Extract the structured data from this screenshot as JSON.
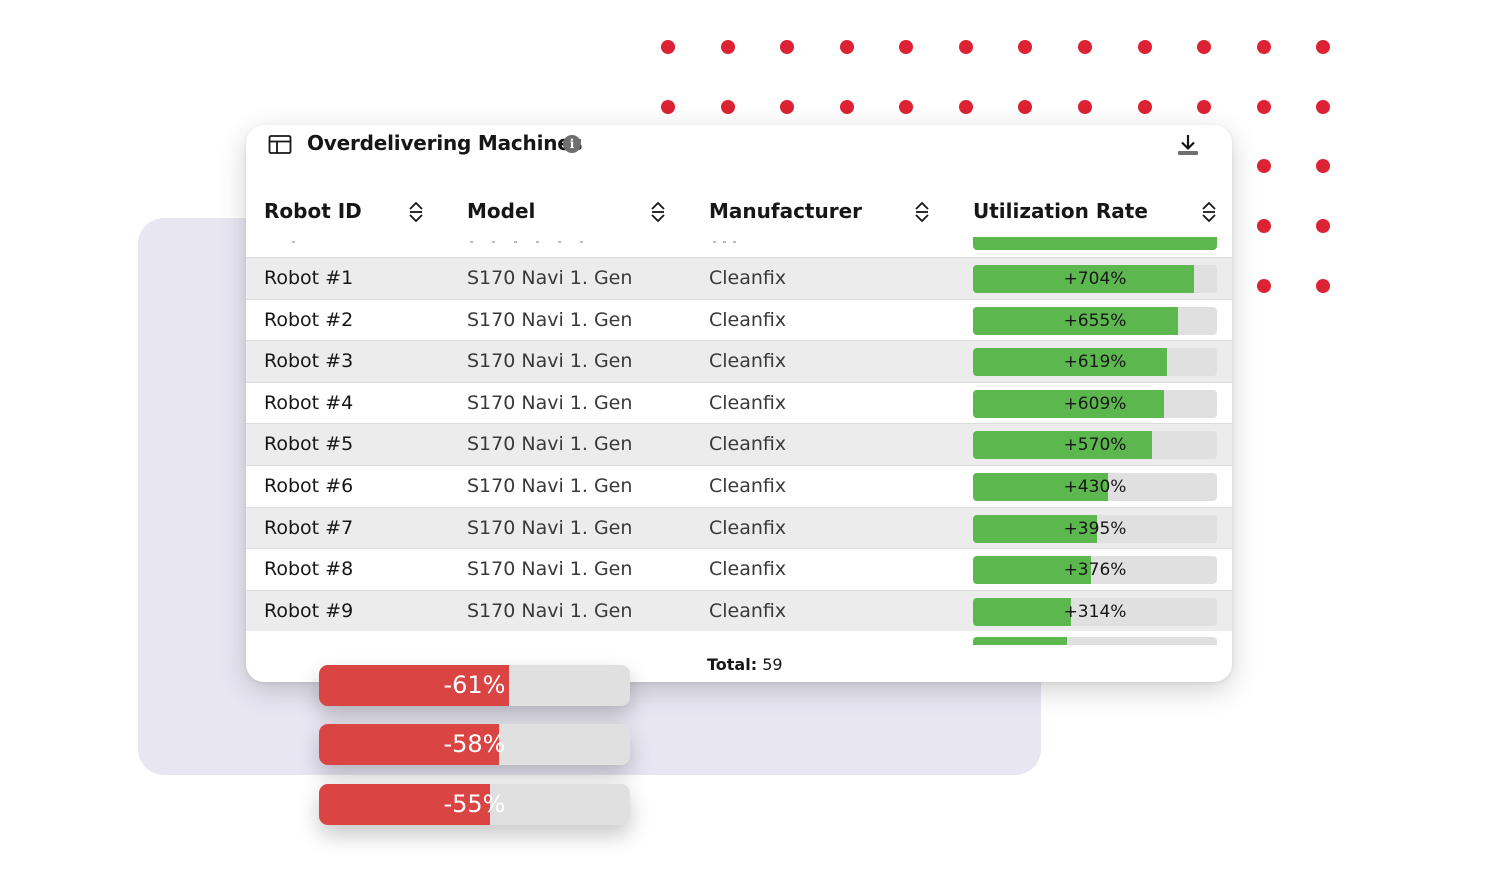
{
  "colors": {
    "accent_red": "#da4443",
    "dot_red": "#dc2233",
    "bar_green": "#5cb84e",
    "bar_track": "#e0e0e0",
    "lavender": "#e8e6f1"
  },
  "card": {
    "title": "Overdelivering Machines",
    "info_icon": "i",
    "download_icon": "download-icon",
    "table_icon": "table-icon"
  },
  "table": {
    "headers": {
      "robot_id": "Robot ID",
      "model": "Model",
      "manufacturer": "Manufacturer",
      "utilization": "Utilization Rate"
    },
    "rows": [
      {
        "id": "Robot #1",
        "model": "S170 Navi 1. Gen",
        "manufacturer": "Cleanfix",
        "rate": "+704%",
        "fill": 0.905
      },
      {
        "id": "Robot #2",
        "model": "S170 Navi 1. Gen",
        "manufacturer": "Cleanfix",
        "rate": "+655%",
        "fill": 0.84
      },
      {
        "id": "Robot #3",
        "model": "S170 Navi 1. Gen",
        "manufacturer": "Cleanfix",
        "rate": "+619%",
        "fill": 0.795
      },
      {
        "id": "Robot #4",
        "model": "S170 Navi 1. Gen",
        "manufacturer": "Cleanfix",
        "rate": "+609%",
        "fill": 0.783
      },
      {
        "id": "Robot #5",
        "model": "S170 Navi 1. Gen",
        "manufacturer": "Cleanfix",
        "rate": "+570%",
        "fill": 0.733
      },
      {
        "id": "Robot #6",
        "model": "S170 Navi 1. Gen",
        "manufacturer": "Cleanfix",
        "rate": "+430%",
        "fill": 0.553
      },
      {
        "id": "Robot #7",
        "model": "S170 Navi 1. Gen",
        "manufacturer": "Cleanfix",
        "rate": "+395%",
        "fill": 0.508
      },
      {
        "id": "Robot #8",
        "model": "S170 Navi 1. Gen",
        "manufacturer": "Cleanfix",
        "rate": "+376%",
        "fill": 0.483
      },
      {
        "id": "Robot #9",
        "model": "S170 Navi 1. Gen",
        "manufacturer": "Cleanfix",
        "rate": "+314%",
        "fill": 0.403
      }
    ],
    "total_label": "Total:",
    "total_value": "59"
  },
  "negative_bars": [
    {
      "label": "-61%",
      "fill": 0.61
    },
    {
      "label": "-58%",
      "fill": 0.58
    },
    {
      "label": "-55%",
      "fill": 0.55
    }
  ]
}
